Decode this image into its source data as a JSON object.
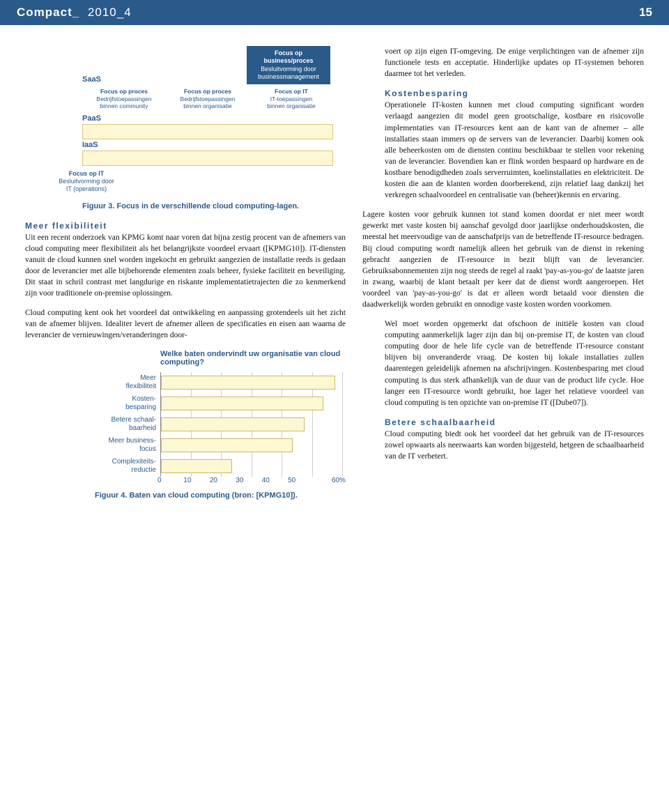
{
  "header": {
    "journal": "Compact_",
    "issue": "2010_4",
    "page": "15"
  },
  "fig3": {
    "box_top": {
      "title": "Focus op\nbusiness/proces",
      "sub": "Besluitvorming door\nbusinessmanagement"
    },
    "saas": "SaaS",
    "tri": [
      {
        "title": "Focus op proces",
        "lines": "Bedrijfstoepassingen\nbinnen community"
      },
      {
        "title": "Focus op proces",
        "lines": "Bedrijfstoepassingen\nbinnen organisatie"
      },
      {
        "title": "Focus op IT",
        "lines": "IT-toepassingen\nbinnen organisatie"
      }
    ],
    "paas": "PaaS",
    "iaas": "IaaS",
    "box_bottom": {
      "title": "Focus op IT",
      "sub": "Besluitvorming door\nIT (operations)"
    },
    "caption": "Figuur 3. Focus in de verschillende cloud computing-lagen.",
    "layer_bg": "#fdf7d4",
    "layer_border": "#d4c97a",
    "accent": "#2a5a8a"
  },
  "left_sections": {
    "h1": "Meer flexibiliteit",
    "p1": "Uit een recent onderzoek van KPMG komt naar voren dat bijna zestig procent van de afnemers van cloud computing meer flexibiliteit als het belangrijkste voordeel ervaart ([KPMG10]). IT-diensten vanuit de cloud kunnen snel worden ingekocht en gebruikt aangezien de installatie reeds is gedaan door de leverancier met alle bijbehorende elementen zoals beheer, fysieke faciliteit en beveiliging. Dit staat in schril contrast met langdurige en riskante implementatietrajecten die zo kenmerkend zijn voor traditionele on-premise oplossingen.",
    "p2": "Cloud computing kent ook het voordeel dat ontwikkeling en aanpassing grotendeels uit het zicht van de afnemer blijven. Idealiter levert de afnemer alleen de specificaties en eisen aan waarna de leverancier de vernieuwingen/veranderingen door-"
  },
  "fig4": {
    "title": "Welke baten ondervindt uw organisatie van cloud computing?",
    "categories": [
      "Meer\nflexibiliteit",
      "Kosten-\nbesparing",
      "Betere schaal-\nbaarheid",
      "Meer business-\nfocus",
      "Complexiteits-\nreductie"
    ],
    "values": [
      57,
      53,
      47,
      43,
      23
    ],
    "xlim": [
      0,
      60
    ],
    "xtick_step": 10,
    "ticks": [
      "0",
      "10",
      "20",
      "30",
      "40",
      "50",
      "60%"
    ],
    "bar_color": "#fdf7d4",
    "bar_border": "#c7bb60",
    "grid_color": "#cccccc",
    "caption": "Figuur 4. Baten van cloud computing (bron: [KPMG10])."
  },
  "right_sections": {
    "p0": "voert op zijn eigen IT-omgeving. De enige verplichtingen van de afnemer zijn functionele tests en acceptatie. Hinderlijke updates op IT-systemen behoren daarmee tot het verleden.",
    "h1": "Kostenbesparing",
    "p1": "Operationele IT-kosten kunnen met cloud computing significant worden verlaagd aangezien dit model geen grootschalige, kostbare en risicovolle implementaties van IT-resources kent aan de kant van de afnemer – alle installaties staan immers op de servers van de leverancier. Daarbij komen ook alle beheerkosten om de diensten continu beschikbaar te stellen voor rekening van de leverancier. Bovendien kan er flink worden bespaard op hardware en de kostbare benodigdheden zoals serverruimten, koelinstallaties en elektriciteit. De kosten die aan de klanten worden doorberekend, zijn relatief laag dankzij het verkregen schaalvoordeel en centralisatie van (beheer)kennis en ervaring.",
    "p2": "Lagere kosten voor gebruik kunnen tot stand komen doordat er niet meer wordt gewerkt met vaste kosten bij aanschaf gevolgd door jaarlijkse onderhoudskosten, die meestal het meervoudige van de aanschafprijs van de betreffende IT-resource bedragen. Bij cloud computing wordt namelijk alleen het gebruik van de dienst in rekening gebracht aangezien de IT-resource in bezit blijft van de leverancier. Gebruiksabonnementen zijn nog steeds de regel al raakt 'pay-as-you-go' de laatste jaren in zwang, waarbij de klant betaalt per keer dat de dienst wordt aangeroepen. Het voordeel van 'pay-as-you-go' is dat er alleen wordt betaald voor diensten die daadwerkelijk worden gebruikt en onnodige vaste kosten worden voorkomen.",
    "p3": "Wel moet worden opgemerkt dat ofschoon de initiële kosten van cloud computing aanmerkelijk lager zijn dan bij on-premise IT, de kosten van cloud computing door de hele life cycle van de betreffende IT-resource constant blijven bij onveranderde vraag. De kosten bij lokale installaties zullen daarentegen geleidelijk afnemen na afschrijvingen. Kostenbesparing met cloud computing is dus sterk afhankelijk van de duur van de product life cycle. Hoe langer een IT-resource wordt gebruikt, hoe lager het relatieve voordeel van cloud computing is ten opzichte van on-premise IT ([Dube07]).",
    "h2": "Betere schaalbaarheid",
    "p4": "Cloud computing biedt ook het voordeel dat het gebruik van de IT-resources zowel opwaarts als neerwaarts kan worden bijgesteld, hetgeen de schaalbaarheid van de IT verbetert."
  }
}
